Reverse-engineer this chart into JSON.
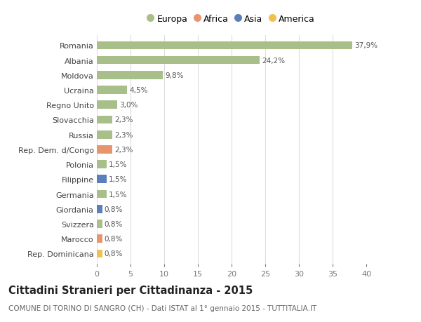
{
  "categories": [
    "Romania",
    "Albania",
    "Moldova",
    "Ucraina",
    "Regno Unito",
    "Slovacchia",
    "Russia",
    "Rep. Dem. d/Congo",
    "Polonia",
    "Filippine",
    "Germania",
    "Giordania",
    "Svizzera",
    "Marocco",
    "Rep. Dominicana"
  ],
  "values": [
    37.9,
    24.2,
    9.8,
    4.5,
    3.0,
    2.3,
    2.3,
    2.3,
    1.5,
    1.5,
    1.5,
    0.8,
    0.8,
    0.8,
    0.8
  ],
  "labels": [
    "37,9%",
    "24,2%",
    "9,8%",
    "4,5%",
    "3,0%",
    "2,3%",
    "2,3%",
    "2,3%",
    "1,5%",
    "1,5%",
    "1,5%",
    "0,8%",
    "0,8%",
    "0,8%",
    "0,8%"
  ],
  "continents": [
    "Europa",
    "Europa",
    "Europa",
    "Europa",
    "Europa",
    "Europa",
    "Europa",
    "Africa",
    "Europa",
    "Asia",
    "Europa",
    "Asia",
    "Europa",
    "Africa",
    "America"
  ],
  "continent_colors": {
    "Europa": "#a8bf8a",
    "Africa": "#e8956d",
    "Asia": "#5b7fbb",
    "America": "#f0c050"
  },
  "legend_order": [
    "Europa",
    "Africa",
    "Asia",
    "America"
  ],
  "title": "Cittadini Stranieri per Cittadinanza - 2015",
  "subtitle": "COMUNE DI TORINO DI SANGRO (CH) - Dati ISTAT al 1° gennaio 2015 - TUTTITALIA.IT",
  "xlim": [
    0,
    40
  ],
  "xticks": [
    0,
    5,
    10,
    15,
    20,
    25,
    30,
    35,
    40
  ],
  "background_color": "#ffffff",
  "grid_color": "#dddddd",
  "bar_height": 0.55,
  "label_fontsize": 7.5,
  "title_fontsize": 10.5,
  "subtitle_fontsize": 7.5,
  "ytick_fontsize": 8,
  "xtick_fontsize": 8,
  "legend_fontsize": 9
}
